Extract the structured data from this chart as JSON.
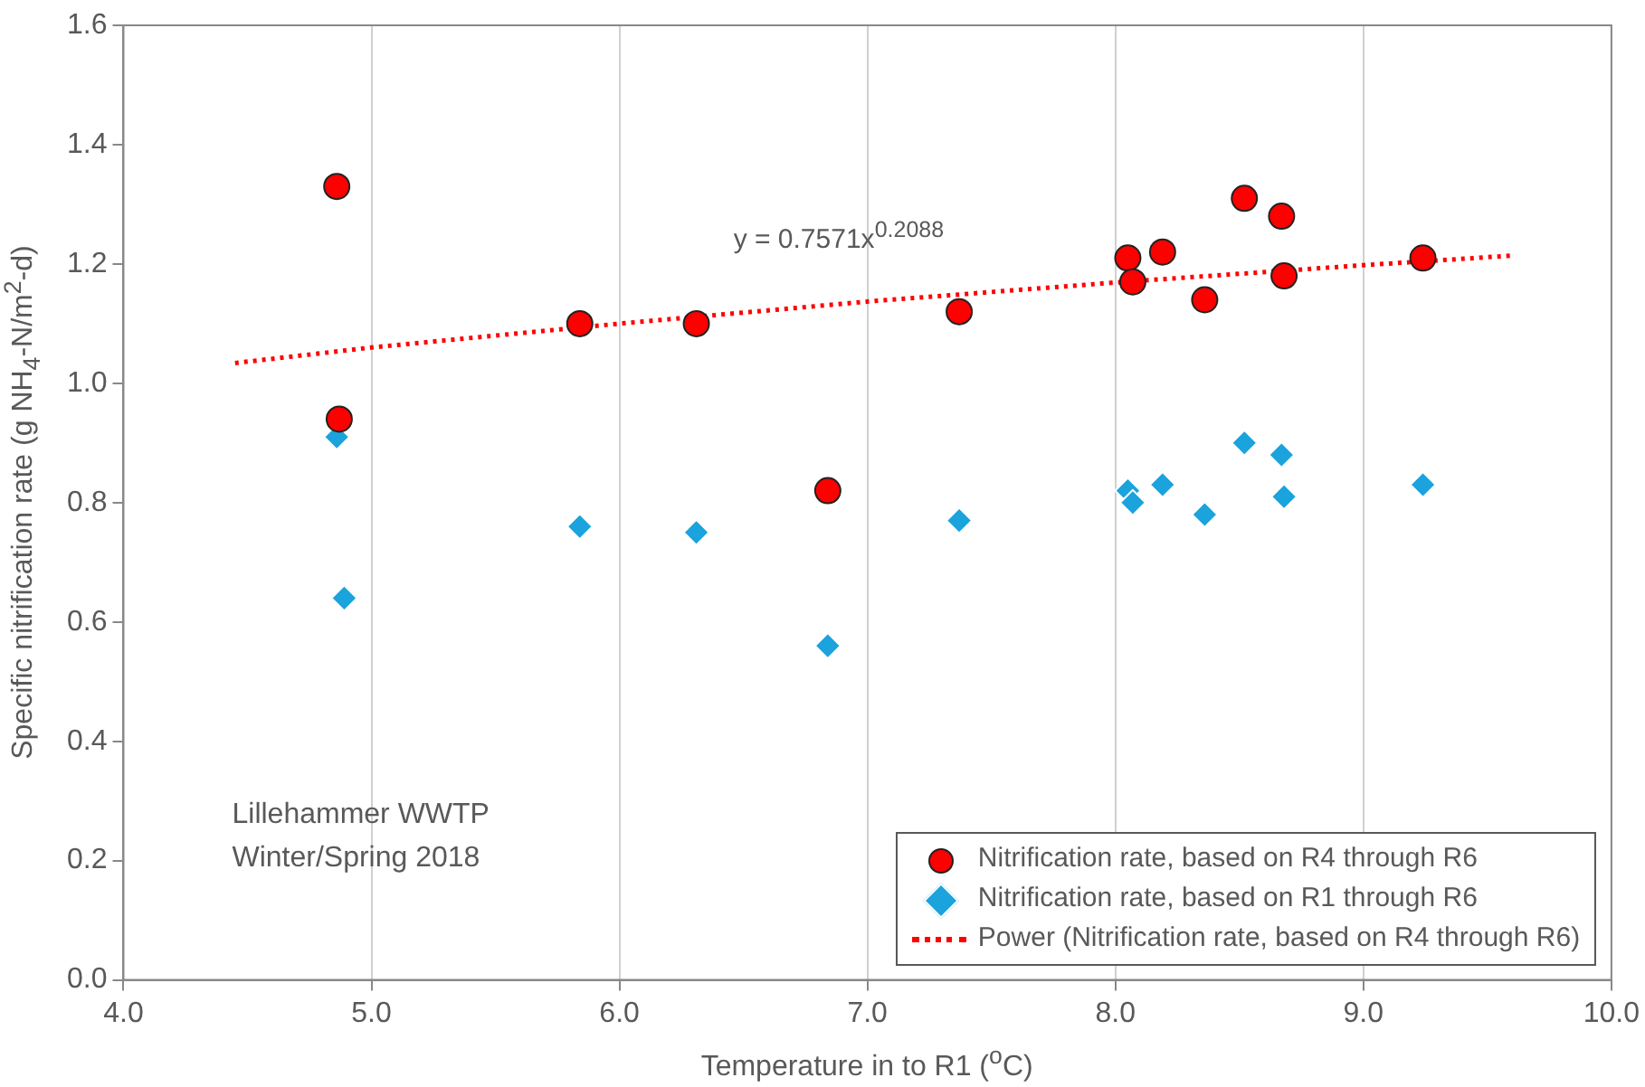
{
  "chart_data": {
    "type": "scatter",
    "xlabel": "Temperature in to R1 ($^{o}$C)",
    "ylabel": "Specific nitrification rate (g NH$_{4}$-N/m$^{2}$-d)",
    "xlim": [
      4.0,
      10.0
    ],
    "xticks": [
      {
        "value": 4,
        "label": "4.0"
      },
      {
        "value": 5,
        "label": "5.0"
      },
      {
        "value": 6,
        "label": "6.0"
      },
      {
        "value": 7,
        "label": "7.0"
      },
      {
        "value": 8,
        "label": "8.0"
      },
      {
        "value": 9,
        "label": "9.0"
      },
      {
        "value": 10,
        "label": "10.0"
      }
    ],
    "ylim": [
      0,
      1.6
    ],
    "yticks": [
      {
        "value": 0,
        "label": "0.0"
      },
      {
        "value": 0.2,
        "label": "0.2"
      },
      {
        "value": 0.4,
        "label": "0.4"
      },
      {
        "value": 0.6,
        "label": "0.6"
      },
      {
        "value": 0.8,
        "label": "0.8"
      },
      {
        "value": 1.0,
        "label": "1.0"
      },
      {
        "value": 1.2,
        "label": "1.2"
      },
      {
        "value": 1.4,
        "label": "1.4"
      },
      {
        "value": 1.6,
        "label": "1.6"
      }
    ],
    "grid": "x",
    "legend": "bottom right",
    "series": [
      {
        "name": "Nitrification rate, based on R4 through R6",
        "type": "scatter",
        "marker": "circle",
        "color": "#ff0000",
        "x": [
          4.86,
          4.87,
          5.84,
          6.31,
          6.84,
          7.37,
          8.05,
          8.07,
          8.19,
          8.36,
          8.52,
          8.67,
          8.68,
          9.24
        ],
        "values": [
          1.33,
          0.94,
          1.1,
          1.1,
          0.82,
          1.12,
          1.21,
          1.17,
          1.22,
          1.14,
          1.31,
          1.28,
          1.18,
          1.21
        ]
      },
      {
        "name": "Nitrification rate, based on R1 through R6",
        "type": "scatter",
        "marker": "diamond",
        "color": "#1aa3dc",
        "x": [
          4.86,
          4.89,
          5.84,
          6.31,
          6.84,
          7.37,
          8.05,
          8.07,
          8.19,
          8.36,
          8.52,
          8.67,
          8.68,
          9.24
        ],
        "values": [
          0.91,
          0.64,
          0.76,
          0.75,
          0.56,
          0.77,
          0.82,
          0.8,
          0.83,
          0.78,
          0.9,
          0.88,
          0.81,
          0.83
        ]
      },
      {
        "name": "Power (Nitrification rate, based on R4 through R6)",
        "type": "line",
        "marker": "none",
        "line_style": "dotted",
        "color": "#ff0000",
        "x": [
          4.45,
          5,
          6,
          7,
          8,
          9,
          9.6
        ],
        "values": [
          1.034,
          1.06,
          1.1,
          1.137,
          1.169,
          1.198,
          1.214
        ]
      }
    ],
    "annotations": [
      "y = 0.7571x$^{0.2088}$",
      "Lillehammer WWTP",
      "Winter/Spring 2018"
    ]
  }
}
